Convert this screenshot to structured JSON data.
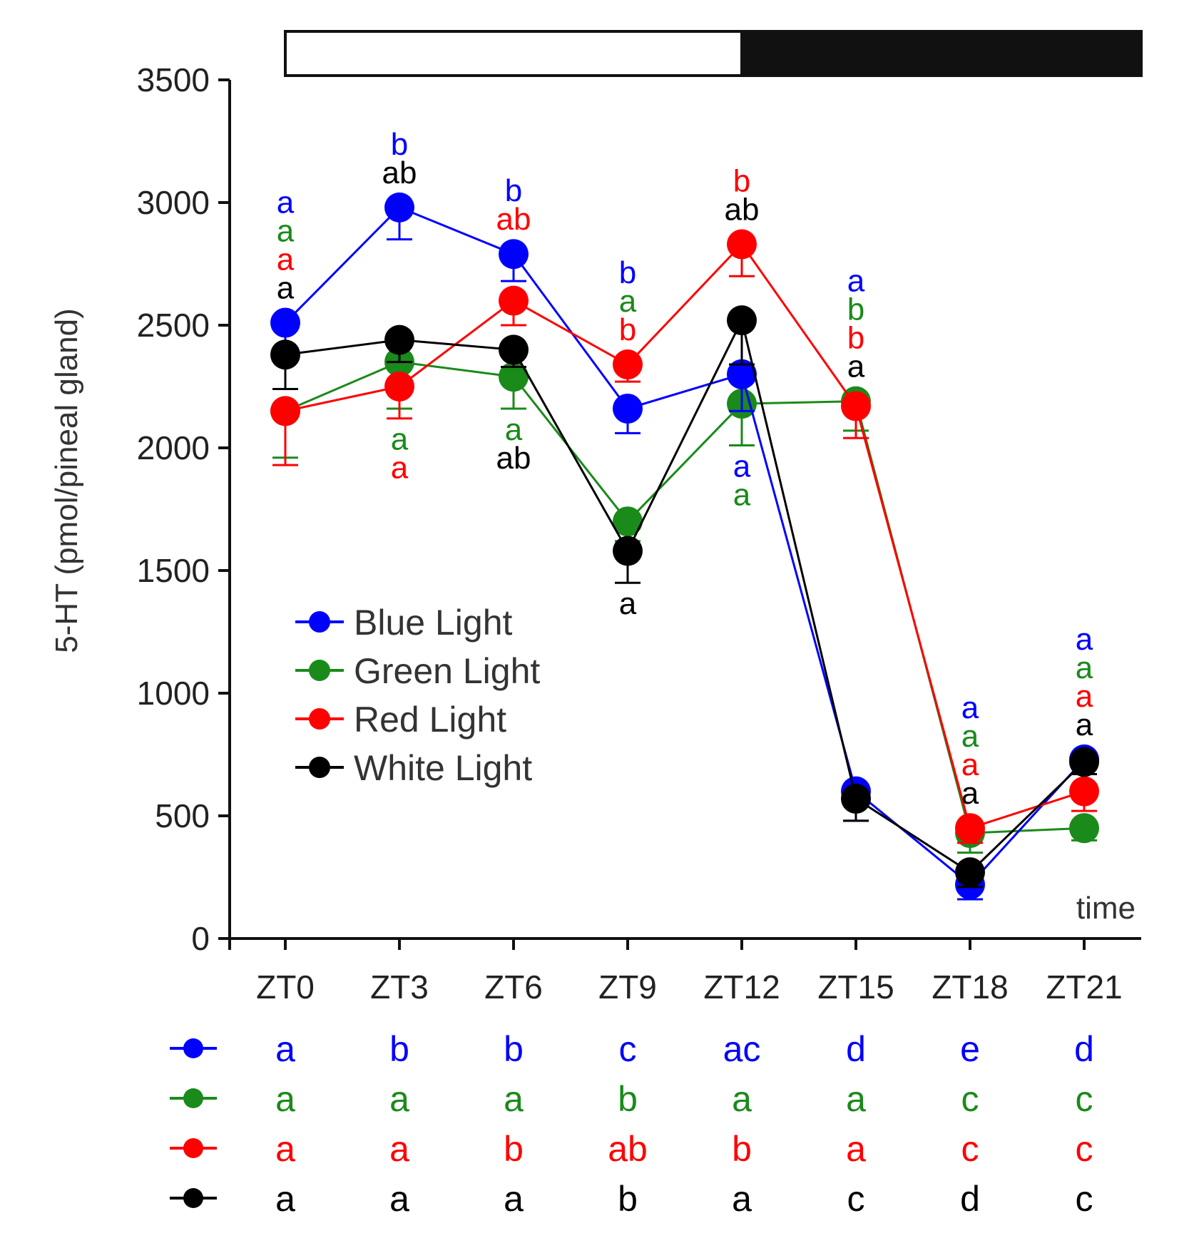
{
  "chart_data": {
    "type": "line",
    "ylabel": "5-HT (pmol/pineal gland)",
    "xlabel": "time",
    "ylim": [
      0,
      3500
    ],
    "yticks": [
      0,
      500,
      1000,
      1500,
      2000,
      2500,
      3000,
      3500
    ],
    "categories": [
      "ZT0",
      "ZT3",
      "ZT6",
      "ZT9",
      "ZT12",
      "ZT15",
      "ZT18",
      "ZT21"
    ],
    "light_dark_bar": {
      "light": [
        "ZT0",
        "ZT12"
      ],
      "dark": [
        "ZT12",
        "ZT21"
      ]
    },
    "grid": false,
    "legend_position": "middle-left",
    "series": [
      {
        "name": "Blue Light",
        "color": "#0000ff",
        "values": [
          2510,
          2980,
          2790,
          2160,
          2300,
          600,
          220,
          730
        ],
        "errors": [
          150,
          130,
          110,
          100,
          150,
          120,
          60,
          60
        ],
        "letters_above": [
          "a",
          "b",
          "b",
          "b",
          "",
          "a",
          "a",
          "a"
        ],
        "letters_below": [
          "",
          "",
          "",
          "",
          "a",
          "",
          "",
          ""
        ]
      },
      {
        "name": "Green Light",
        "color": "#1a8a1a",
        "values": [
          2150,
          2350,
          2290,
          1700,
          2180,
          2190,
          430,
          450
        ],
        "errors": [
          190,
          190,
          130,
          80,
          170,
          120,
          80,
          50
        ],
        "letters_above": [
          "a",
          "",
          "",
          "a",
          "",
          "b",
          "a",
          "a"
        ],
        "letters_below": [
          "",
          "a",
          "a",
          "",
          "a",
          "",
          "",
          ""
        ]
      },
      {
        "name": "Red Light",
        "color": "#ff0000",
        "values": [
          2150,
          2250,
          2600,
          2340,
          2830,
          2170,
          450,
          600
        ],
        "errors": [
          220,
          130,
          100,
          70,
          130,
          130,
          60,
          80
        ],
        "letters_above": [
          "a",
          "",
          "ab",
          "b",
          "b",
          "b",
          "a",
          "a"
        ],
        "letters_below": [
          "",
          "a",
          "",
          "",
          "",
          "",
          "",
          ""
        ]
      },
      {
        "name": "White Light",
        "color": "#000000",
        "values": [
          2380,
          2440,
          2400,
          1580,
          2520,
          570,
          270,
          720
        ],
        "errors": [
          140,
          90,
          70,
          130,
          180,
          90,
          60,
          50
        ],
        "letters_above": [
          "a",
          "ab",
          "",
          "",
          "ab",
          "a",
          "a",
          "a"
        ],
        "letters_below": [
          "",
          "",
          "ab",
          "a",
          "",
          "",
          "",
          ""
        ]
      }
    ],
    "significance_table": [
      {
        "series": "Blue Light",
        "color": "#0000ff",
        "letters": [
          "a",
          "b",
          "b",
          "c",
          "ac",
          "d",
          "e",
          "d"
        ]
      },
      {
        "series": "Green Light",
        "color": "#1a8a1a",
        "letters": [
          "a",
          "a",
          "a",
          "b",
          "a",
          "a",
          "c",
          "c"
        ]
      },
      {
        "series": "Red Light",
        "color": "#ff0000",
        "letters": [
          "a",
          "a",
          "b",
          "ab",
          "b",
          "a",
          "c",
          "c"
        ]
      },
      {
        "series": "White Light",
        "color": "#000000",
        "letters": [
          "a",
          "a",
          "a",
          "b",
          "a",
          "c",
          "d",
          "c"
        ]
      }
    ]
  }
}
